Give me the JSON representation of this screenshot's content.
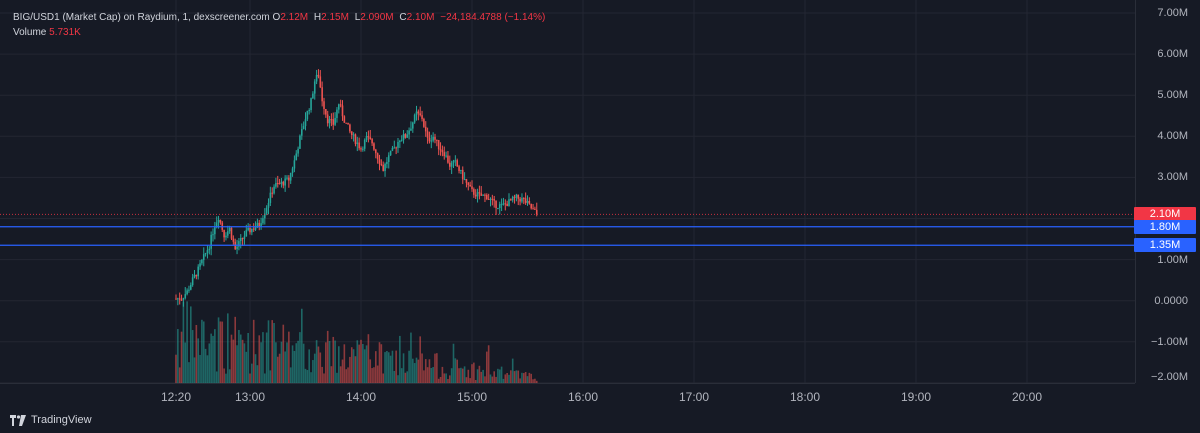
{
  "header": {
    "symbol": "BIG/USD1 (Market Cap) on Raydium, 1, dexscreener.com",
    "ohlc": [
      {
        "key": "O",
        "value": "2.12M"
      },
      {
        "key": "H",
        "value": "2.15M"
      },
      {
        "key": "L",
        "value": "2.090M"
      },
      {
        "key": "C",
        "value": "2.10M"
      }
    ],
    "change": "−24,184.4788 (−1.14%)",
    "volume_label": "Volume",
    "volume_value": "5.731K"
  },
  "price_axis": {
    "ticks": [
      "7.00M",
      "6.00M",
      "5.00M",
      "4.00M",
      "3.00M",
      "1.00M",
      "0.0000",
      "−1.00M",
      "−2.00M"
    ],
    "tags": [
      {
        "value": "2.10M",
        "color": "#f23645"
      },
      {
        "value": "1.80M",
        "color": "#2962ff"
      },
      {
        "value": "1.35M",
        "color": "#2962ff"
      }
    ]
  },
  "time_axis": {
    "ticks": [
      "12:20",
      "13:00",
      "14:00",
      "15:00",
      "16:00",
      "17:00",
      "18:00",
      "19:00",
      "20:00"
    ]
  },
  "chart_data": {
    "type": "candlestick",
    "horizontal_lines": [
      1.8,
      1.35
    ],
    "last_price": 2.1,
    "units": "M",
    "price_range": [
      -2.0,
      7.0
    ],
    "time_range": [
      "12:10",
      "20:30"
    ],
    "close_path": [
      [
        "12:20",
        0.05
      ],
      [
        "12:23",
        0.07
      ],
      [
        "12:26",
        0.22
      ],
      [
        "12:29",
        0.5
      ],
      [
        "12:32",
        0.75
      ],
      [
        "12:35",
        1.05
      ],
      [
        "12:38",
        1.35
      ],
      [
        "12:41",
        1.85
      ],
      [
        "12:43",
        2.05
      ],
      [
        "12:46",
        1.6
      ],
      [
        "12:49",
        1.75
      ],
      [
        "12:52",
        1.25
      ],
      [
        "12:55",
        1.45
      ],
      [
        "12:58",
        1.65
      ],
      [
        "13:01",
        1.75
      ],
      [
        "13:05",
        1.85
      ],
      [
        "13:09",
        2.3
      ],
      [
        "13:13",
        2.8
      ],
      [
        "13:17",
        2.85
      ],
      [
        "13:21",
        2.95
      ],
      [
        "13:24",
        3.4
      ],
      [
        "13:27",
        3.95
      ],
      [
        "13:30",
        4.45
      ],
      [
        "13:33",
        4.85
      ],
      [
        "13:35",
        5.35
      ],
      [
        "13:37",
        5.5
      ],
      [
        "13:39",
        4.9
      ],
      [
        "13:42",
        4.4
      ],
      [
        "13:45",
        4.3
      ],
      [
        "13:48",
        4.8
      ],
      [
        "13:51",
        4.4
      ],
      [
        "13:54",
        4.1
      ],
      [
        "13:57",
        3.9
      ],
      [
        "14:00",
        3.7
      ],
      [
        "14:03",
        3.95
      ],
      [
        "14:06",
        3.85
      ],
      [
        "14:09",
        3.5
      ],
      [
        "14:12",
        3.2
      ],
      [
        "14:15",
        3.5
      ],
      [
        "14:18",
        3.7
      ],
      [
        "14:21",
        3.95
      ],
      [
        "14:24",
        4.0
      ],
      [
        "14:27",
        4.25
      ],
      [
        "14:30",
        4.55
      ],
      [
        "14:33",
        4.45
      ],
      [
        "14:36",
        3.9
      ],
      [
        "14:39",
        4.0
      ],
      [
        "14:42",
        3.75
      ],
      [
        "14:45",
        3.6
      ],
      [
        "14:48",
        3.3
      ],
      [
        "14:51",
        3.35
      ],
      [
        "14:54",
        3.1
      ],
      [
        "14:57",
        2.85
      ],
      [
        "15:00",
        2.65
      ],
      [
        "15:04",
        2.55
      ],
      [
        "15:08",
        2.55
      ],
      [
        "15:12",
        2.35
      ],
      [
        "15:16",
        2.3
      ],
      [
        "15:20",
        2.4
      ],
      [
        "15:24",
        2.5
      ],
      [
        "15:28",
        2.45
      ],
      [
        "15:32",
        2.25
      ],
      [
        "15:35",
        2.1
      ]
    ]
  },
  "brand": {
    "name": "TradingView"
  },
  "colors": {
    "up": "#26a69a",
    "down": "#ef5350",
    "line_blue": "#2962ff",
    "last_red": "#f23645",
    "background": "#161a25",
    "grid": "#232632",
    "text": "#b2b5be"
  }
}
